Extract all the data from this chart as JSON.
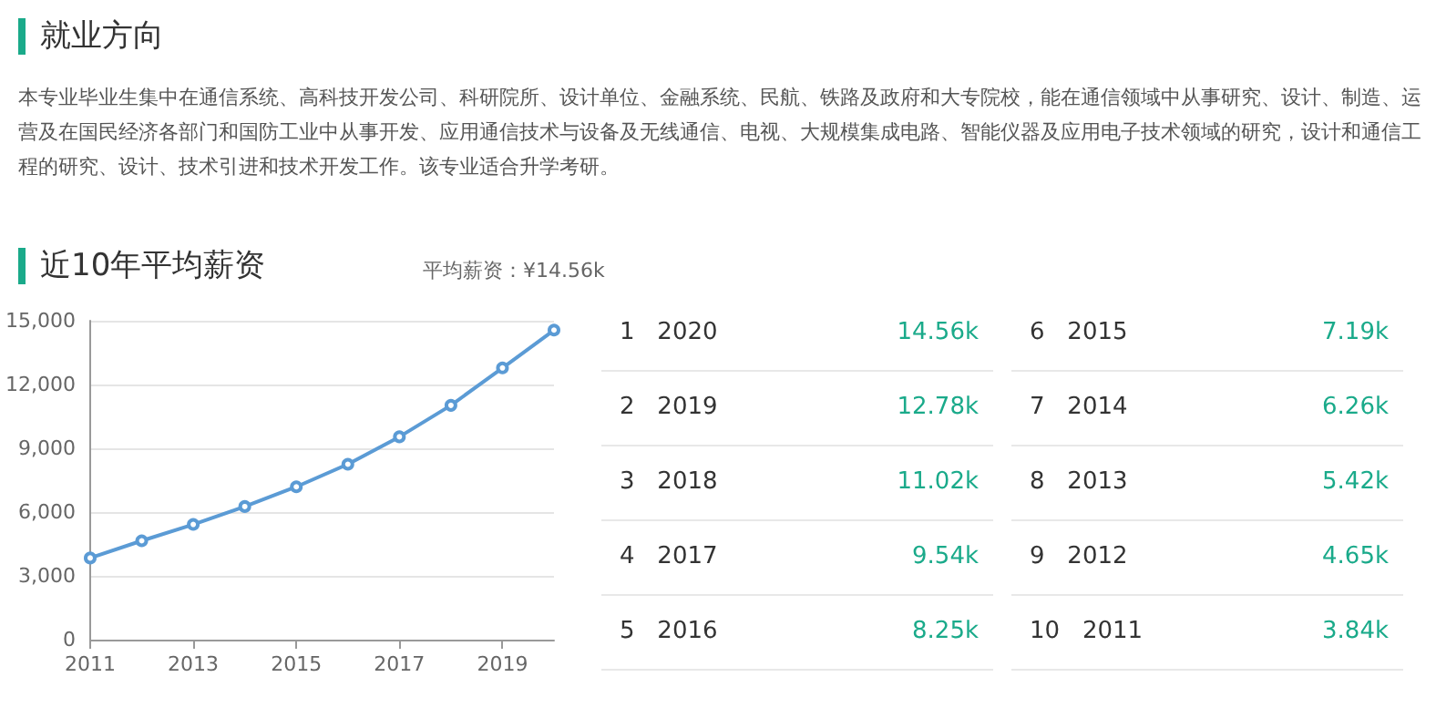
{
  "chart_data": [
    {
      "type": "line",
      "title": "近10年平均薪资",
      "annotations": [
        "就业方向",
        "本专业毕业生集中在通信系统、高科技开发公司、科研院所、设计单位、金融系统、民航、铁路及政府和大专院校，能在通信领域中从事研究、设计、制造、运营及在国民经济各部门和国防工业中从事开发、应用通信技术与设备及无线通信、电视、大规模集成电路、智能仪器及应用电子技术领域的研究，设计和通信工程的研究、设计、技术引进和技术开发工作。该专业适合升学考研。",
        "平均薪资：¥14.56k"
      ],
      "x": [
        2011,
        2012,
        2013,
        2014,
        2015,
        2016,
        2017,
        2018,
        2019,
        2020
      ],
      "series": [
        {
          "color": "#5b9bd5",
          "values": [
            3840,
            4650,
            5420,
            6260,
            7190,
            8250,
            9540,
            11020,
            12780,
            14560
          ]
        }
      ],
      "xlim": [
        2011,
        2020
      ],
      "xticks": [
        2011,
        2013,
        2015,
        2017,
        2019
      ],
      "ylim": [
        0,
        15000
      ],
      "yticks": [
        0,
        {
          "value": 3000,
          "label": "3,000"
        },
        {
          "value": 6000,
          "label": "6,000"
        },
        {
          "value": 9000,
          "label": "9,000"
        },
        {
          "value": 12000,
          "label": "12,000"
        },
        {
          "value": 15000,
          "label": "15,000"
        }
      ],
      "grid": "y",
      "marker": "circle",
      "line_style": "solid"
    },
    {
      "type": "other",
      "annotations": [
        "1   2020",
        "14.56k",
        "2   2019",
        "12.78k",
        "3   2018",
        "11.02k",
        "4   2017",
        "9.54k",
        "5   2016",
        "8.25k",
        "6   2015",
        "7.19k",
        "7   2014",
        "6.26k",
        "8   2013",
        "5.42k",
        "9   2012",
        "4.65k",
        "10   2011",
        "3.84k"
      ]
    }
  ]
}
